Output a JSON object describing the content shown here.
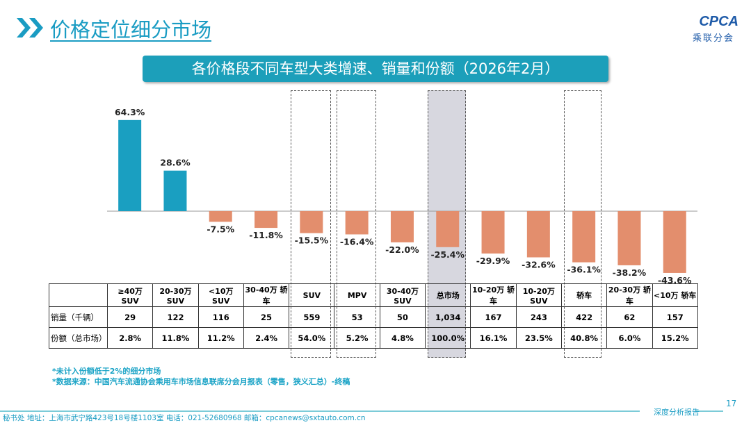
{
  "header": {
    "title": "价格定位细分市场",
    "logo_text": "CPCA",
    "logo_sub": "乘联分会"
  },
  "banner": "各价格段不同车型大类增速、销量和份额（2026年2月）",
  "chart_data": {
    "type": "bar",
    "categories": [
      "≥40万 SUV",
      "20-30万 SUV",
      "<10万 SUV",
      "30-40万 轿车",
      "SUV",
      "MPV",
      "30-40万 SUV",
      "总市场",
      "10-20万 轿车",
      "10-20万 SUV",
      "轿车",
      "20-30万 轿车",
      "<10万 轿车"
    ],
    "values": [
      64.3,
      28.6,
      -7.5,
      -11.8,
      -15.5,
      -16.4,
      -22.0,
      -25.4,
      -29.9,
      -32.6,
      -36.1,
      -38.2,
      -43.6
    ],
    "value_labels": [
      "64.3%",
      "28.6%",
      "-7.5%",
      "-11.8%",
      "-15.5%",
      "-16.4%",
      "-22.0%",
      "-25.4%",
      "-29.9%",
      "-32.6%",
      "-36.1%",
      "-38.2%",
      "-43.6%"
    ],
    "unit": "%",
    "colors": {
      "positive": "#1a9fc1",
      "negative": "#e38e6d"
    },
    "highlighted": [
      "SUV",
      "MPV",
      "总市场",
      "轿车"
    ],
    "shaded": "总市场"
  },
  "table": {
    "rows": [
      {
        "label": "销量（千辆）",
        "values": [
          "29",
          "122",
          "116",
          "25",
          "559",
          "53",
          "50",
          "1,034",
          "167",
          "243",
          "422",
          "62",
          "157"
        ]
      },
      {
        "label": "份额（总市场）",
        "values": [
          "2.8%",
          "11.8%",
          "11.2%",
          "2.4%",
          "54.0%",
          "5.2%",
          "4.8%",
          "100.0%",
          "16.1%",
          "23.5%",
          "40.8%",
          "6.0%",
          "15.2%"
        ]
      }
    ]
  },
  "notes": [
    "*未计入份额低于2%的细分市场",
    "*数据来源：中国汽车流通协会乘用车市场信息联席分会月报表（零售，狭义汇总）-终稿"
  ],
  "footer": {
    "address": "秘书处  地址：上海市武宁路423号18号楼1103室  电话：021-52680968  邮箱：cpcanews@sxtauto.com.cn",
    "report": "深度分析报告",
    "page": "17"
  }
}
